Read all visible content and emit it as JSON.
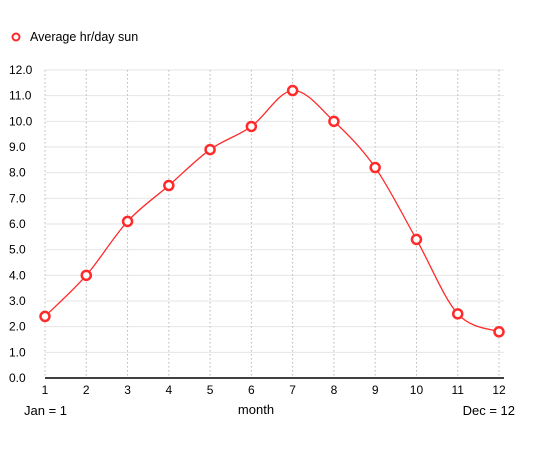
{
  "chart_data": {
    "type": "line",
    "title": "",
    "xlabel": "month",
    "ylabel": "",
    "x_axis_note_left": "Jan = 1",
    "x_axis_note_right": "Dec = 12",
    "x": [
      1,
      2,
      3,
      4,
      5,
      6,
      7,
      8,
      9,
      10,
      11,
      12
    ],
    "x_ticks": [
      "1",
      "2",
      "3",
      "4",
      "5",
      "6",
      "7",
      "8",
      "9",
      "10",
      "11",
      "12"
    ],
    "y_ticks": [
      "0.0",
      "1.0",
      "2.0",
      "3.0",
      "4.0",
      "5.0",
      "6.0",
      "7.0",
      "8.0",
      "9.0",
      "10.0",
      "11.0",
      "12.0"
    ],
    "xlim": [
      1,
      12
    ],
    "ylim": [
      0,
      12
    ],
    "grid": true,
    "legend_position": "top-left",
    "smooth": true,
    "series": [
      {
        "name": "Average hr/day sun",
        "color": "#ff2a2a",
        "values": [
          2.4,
          4.0,
          6.1,
          7.5,
          8.9,
          9.8,
          11.2,
          10.0,
          8.2,
          5.4,
          2.5,
          1.8
        ]
      }
    ]
  }
}
